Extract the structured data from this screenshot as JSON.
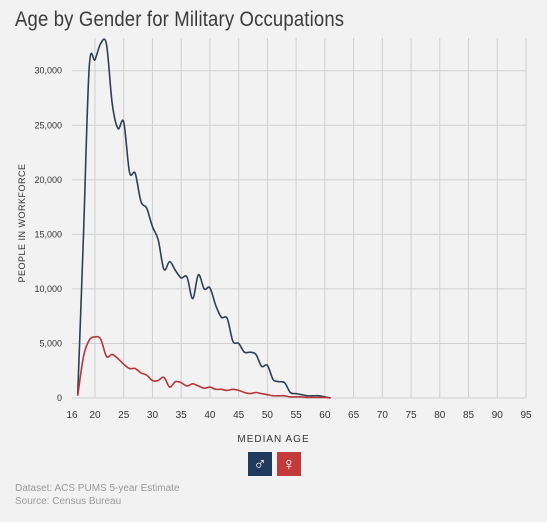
{
  "title": "Age by Gender for Military Occupations",
  "legend": {
    "male_icon": "male-symbol-icon",
    "female_icon": "female-symbol-icon",
    "male_glyph": "♂",
    "female_glyph": "♀",
    "male_color": "#1f3a5c",
    "female_color": "#c23a3a"
  },
  "footer": {
    "dataset": "Dataset: ACS PUMS 5-year Estimate",
    "source": "Source: Census Bureau"
  },
  "chart_data": {
    "type": "line",
    "title": "Age by Gender for Military Occupations",
    "xlabel": "MEDIAN AGE",
    "ylabel": "PEOPLE IN WORKFORCE",
    "xlim": [
      16,
      95
    ],
    "ylim": [
      0,
      33000
    ],
    "x_ticks": [
      16,
      20,
      25,
      30,
      35,
      40,
      45,
      50,
      55,
      60,
      65,
      70,
      75,
      80,
      85,
      90,
      95
    ],
    "y_ticks": [
      0,
      5000,
      10000,
      15000,
      20000,
      25000,
      30000
    ],
    "y_tick_labels": [
      "0",
      "5,000",
      "10,000",
      "15,000",
      "20,000",
      "25,000",
      "30,000"
    ],
    "grid": true,
    "series": [
      {
        "name": "Male",
        "color": "#2d3f55",
        "x": [
          17,
          18,
          19,
          20,
          21,
          22,
          23,
          24,
          25,
          26,
          27,
          28,
          29,
          30,
          31,
          32,
          33,
          34,
          35,
          36,
          37,
          38,
          39,
          40,
          41,
          42,
          43,
          44,
          45,
          46,
          47,
          48,
          49,
          50,
          51,
          52,
          53,
          54,
          55,
          56,
          57,
          58,
          59,
          60,
          61
        ],
        "y": [
          300,
          15000,
          30300,
          31000,
          32500,
          32400,
          27000,
          24700,
          25300,
          20700,
          20600,
          18000,
          17400,
          15700,
          14500,
          11800,
          12500,
          11700,
          11000,
          11100,
          9100,
          11300,
          10000,
          10100,
          8500,
          7400,
          7300,
          5200,
          5000,
          4200,
          4200,
          4000,
          2900,
          3000,
          1700,
          1500,
          1400,
          500,
          400,
          300,
          200,
          200,
          200,
          100,
          0
        ]
      },
      {
        "name": "Female",
        "color": "#b5353a",
        "x": [
          17,
          18,
          19,
          20,
          21,
          22,
          23,
          24,
          25,
          26,
          27,
          28,
          29,
          30,
          31,
          32,
          33,
          34,
          35,
          36,
          37,
          38,
          39,
          40,
          41,
          42,
          43,
          44,
          45,
          46,
          47,
          48,
          49,
          50,
          51,
          52,
          53,
          54,
          55,
          56,
          57,
          58,
          59,
          60,
          61
        ],
        "y": [
          200,
          3800,
          5300,
          5600,
          5400,
          3800,
          4000,
          3600,
          3100,
          2700,
          2700,
          2300,
          2100,
          1600,
          1600,
          1900,
          1000,
          1500,
          1400,
          1100,
          1300,
          1100,
          900,
          1000,
          800,
          800,
          700,
          800,
          700,
          500,
          400,
          500,
          400,
          300,
          200,
          200,
          200,
          100,
          100,
          100,
          50,
          50,
          50,
          50,
          0
        ]
      }
    ]
  }
}
